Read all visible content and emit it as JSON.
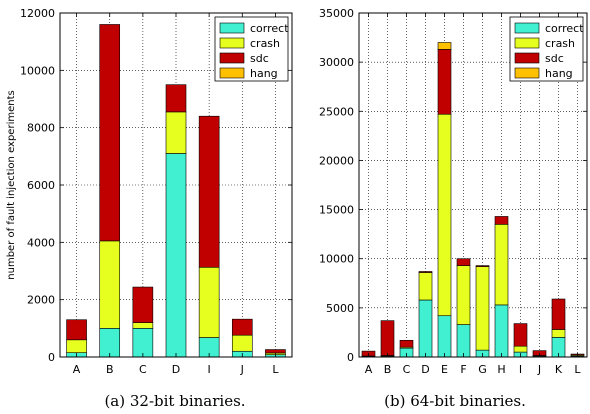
{
  "colors": {
    "correct": "#40f0d0",
    "crash": "#e6ff1e",
    "sdc": "#c00000",
    "hang": "#ffc000"
  },
  "chart_data": [
    {
      "type": "bar",
      "stacked": true,
      "title": "",
      "caption": "(a) 32-bit binaries.",
      "xlabel": "",
      "ylabel": "number of fault injection experiments",
      "ylim": [
        0,
        12000
      ],
      "yticks": [
        0,
        2000,
        4000,
        6000,
        8000,
        10000,
        12000
      ],
      "grid": true,
      "legend_position": "top-right",
      "categories": [
        "A",
        "B",
        "C",
        "D",
        "I",
        "J",
        "L"
      ],
      "series": [
        {
          "name": "correct",
          "color_key": "correct",
          "values": [
            150,
            1000,
            1000,
            7100,
            680,
            200,
            80
          ]
        },
        {
          "name": "crash",
          "color_key": "crash",
          "values": [
            450,
            3050,
            200,
            1450,
            2450,
            560,
            60
          ]
        },
        {
          "name": "sdc",
          "color_key": "sdc",
          "values": [
            700,
            7550,
            1240,
            950,
            5270,
            560,
            120
          ]
        },
        {
          "name": "hang",
          "color_key": "hang",
          "values": [
            0,
            0,
            0,
            0,
            0,
            0,
            0
          ]
        }
      ]
    },
    {
      "type": "bar",
      "stacked": true,
      "title": "",
      "caption": "(b) 64-bit binaries.",
      "xlabel": "",
      "ylabel": "",
      "ylim": [
        0,
        35000
      ],
      "yticks": [
        0,
        5000,
        10000,
        15000,
        20000,
        25000,
        30000,
        35000
      ],
      "grid": true,
      "legend_position": "top-right",
      "categories": [
        "A",
        "B",
        "C",
        "D",
        "E",
        "F",
        "G",
        "H",
        "I",
        "J",
        "K",
        "L"
      ],
      "series": [
        {
          "name": "correct",
          "color_key": "correct",
          "values": [
            50,
            100,
            900,
            5800,
            4200,
            3300,
            700,
            5300,
            500,
            100,
            2000,
            100
          ]
        },
        {
          "name": "crash",
          "color_key": "crash",
          "values": [
            50,
            50,
            100,
            2800,
            20500,
            6000,
            8500,
            8200,
            600,
            50,
            800,
            100
          ]
        },
        {
          "name": "sdc",
          "color_key": "sdc",
          "values": [
            500,
            3550,
            700,
            100,
            6600,
            700,
            100,
            800,
            2300,
            500,
            3100,
            100
          ]
        },
        {
          "name": "hang",
          "color_key": "hang",
          "values": [
            0,
            0,
            0,
            0,
            700,
            0,
            0,
            0,
            0,
            0,
            0,
            0
          ]
        }
      ]
    }
  ]
}
